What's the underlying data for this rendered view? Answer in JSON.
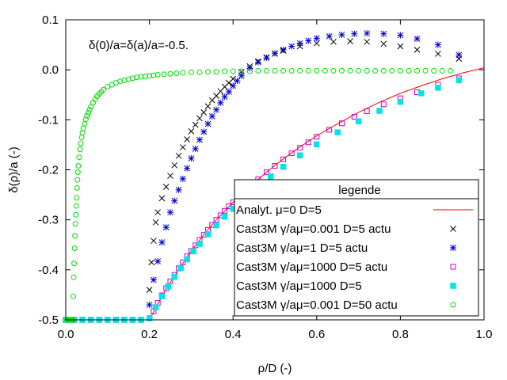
{
  "chart_data": {
    "type": "scatter",
    "xlabel": "ρ/D (-)",
    "ylabel": "δ(ρ)/a (-)",
    "annotation": "δ(0)/a=δ(a)/a=-0.5.",
    "xlim": [
      0.0,
      1.0
    ],
    "ylim": [
      -0.5,
      0.1
    ],
    "xticks": [
      0.0,
      0.2,
      0.4,
      0.6,
      0.8,
      1.0
    ],
    "xtick_labels": [
      "0.0",
      "0.2",
      "0.4",
      "0.6",
      "0.8",
      "1.0"
    ],
    "yticks": [
      -0.5,
      -0.4,
      -0.3,
      -0.2,
      -0.1,
      0.0,
      0.1
    ],
    "ytick_labels": [
      "-0.5",
      "-0.4",
      "-0.3",
      "-0.2",
      "-0.1",
      "0.0",
      "0.1"
    ],
    "legend": {
      "title": "legende",
      "position": "bottom-right"
    },
    "series": [
      {
        "name": "Analyt. μ=0 D=5",
        "marker": "line",
        "color": "#ff0000",
        "x": [
          0.2,
          0.22,
          0.25,
          0.28,
          0.3,
          0.33,
          0.36,
          0.4,
          0.45,
          0.5,
          0.55,
          0.6,
          0.65,
          0.7,
          0.75,
          0.8,
          0.85,
          0.9,
          0.95,
          1.0
        ],
        "y": [
          -0.5,
          -0.468,
          -0.425,
          -0.387,
          -0.362,
          -0.33,
          -0.3,
          -0.265,
          -0.226,
          -0.191,
          -0.16,
          -0.132,
          -0.108,
          -0.085,
          -0.065,
          -0.047,
          -0.032,
          -0.018,
          -0.006,
          0.004
        ]
      },
      {
        "name": "Cast3M γ/aμ=0.001 D=5 actu",
        "marker": "x",
        "color": "#000000",
        "x": [
          0.0,
          0.02,
          0.04,
          0.06,
          0.08,
          0.1,
          0.12,
          0.14,
          0.16,
          0.18,
          0.2,
          0.205,
          0.21,
          0.215,
          0.22,
          0.23,
          0.24,
          0.25,
          0.26,
          0.27,
          0.28,
          0.29,
          0.3,
          0.31,
          0.32,
          0.33,
          0.34,
          0.35,
          0.36,
          0.37,
          0.38,
          0.39,
          0.4,
          0.42,
          0.44,
          0.46,
          0.48,
          0.5,
          0.52,
          0.56,
          0.6,
          0.64,
          0.68,
          0.72,
          0.76,
          0.8,
          0.84,
          0.89,
          0.94
        ],
        "y": [
          -0.5,
          -0.5,
          -0.5,
          -0.5,
          -0.5,
          -0.5,
          -0.5,
          -0.5,
          -0.5,
          -0.5,
          -0.44,
          -0.385,
          -0.342,
          -0.305,
          -0.285,
          -0.257,
          -0.234,
          -0.212,
          -0.191,
          -0.172,
          -0.155,
          -0.139,
          -0.123,
          -0.11,
          -0.097,
          -0.085,
          -0.073,
          -0.061,
          -0.052,
          -0.043,
          -0.034,
          -0.026,
          -0.018,
          -0.004,
          0.007,
          0.017,
          0.025,
          0.032,
          0.038,
          0.047,
          0.053,
          0.056,
          0.057,
          0.056,
          0.052,
          0.047,
          0.04,
          0.032,
          0.022
        ]
      },
      {
        "name": "Cast3M γ/aμ=1 D=5 actu",
        "marker": "star",
        "color": "#0000cc",
        "x": [
          0.0,
          0.02,
          0.04,
          0.06,
          0.08,
          0.1,
          0.12,
          0.14,
          0.16,
          0.18,
          0.2,
          0.21,
          0.22,
          0.23,
          0.24,
          0.25,
          0.26,
          0.27,
          0.28,
          0.29,
          0.3,
          0.31,
          0.32,
          0.33,
          0.34,
          0.35,
          0.36,
          0.37,
          0.38,
          0.39,
          0.4,
          0.41,
          0.42,
          0.44,
          0.46,
          0.48,
          0.5,
          0.52,
          0.54,
          0.56,
          0.58,
          0.6,
          0.63,
          0.66,
          0.69,
          0.72,
          0.76,
          0.8,
          0.84,
          0.89,
          0.94
        ],
        "y": [
          -0.5,
          -0.5,
          -0.5,
          -0.5,
          -0.5,
          -0.5,
          -0.5,
          -0.5,
          -0.5,
          -0.5,
          -0.47,
          -0.42,
          -0.383,
          -0.345,
          -0.315,
          -0.285,
          -0.262,
          -0.24,
          -0.218,
          -0.197,
          -0.177,
          -0.158,
          -0.14,
          -0.124,
          -0.108,
          -0.093,
          -0.08,
          -0.066,
          -0.054,
          -0.044,
          -0.032,
          -0.022,
          -0.012,
          0.003,
          0.015,
          0.024,
          0.033,
          0.04,
          0.047,
          0.053,
          0.058,
          0.063,
          0.067,
          0.07,
          0.072,
          0.073,
          0.072,
          0.069,
          0.062,
          0.05,
          0.03
        ]
      },
      {
        "name": "Cast3M γ/aμ=1000 D=5 actu",
        "marker": "square-open",
        "color": "#cc00cc",
        "x": [
          0.0,
          0.02,
          0.04,
          0.06,
          0.08,
          0.1,
          0.12,
          0.14,
          0.16,
          0.18,
          0.2,
          0.21,
          0.22,
          0.23,
          0.24,
          0.25,
          0.26,
          0.27,
          0.28,
          0.29,
          0.3,
          0.31,
          0.32,
          0.33,
          0.34,
          0.35,
          0.36,
          0.37,
          0.38,
          0.39,
          0.4,
          0.42,
          0.44,
          0.46,
          0.48,
          0.5,
          0.52,
          0.54,
          0.56,
          0.58,
          0.6,
          0.63,
          0.66,
          0.69,
          0.72,
          0.76,
          0.8,
          0.84,
          0.89,
          0.94
        ],
        "y": [
          -0.5,
          -0.5,
          -0.5,
          -0.5,
          -0.5,
          -0.5,
          -0.5,
          -0.5,
          -0.5,
          -0.5,
          -0.497,
          -0.483,
          -0.466,
          -0.451,
          -0.437,
          -0.423,
          -0.41,
          -0.397,
          -0.385,
          -0.373,
          -0.362,
          -0.351,
          -0.34,
          -0.33,
          -0.32,
          -0.31,
          -0.3,
          -0.291,
          -0.282,
          -0.273,
          -0.265,
          -0.249,
          -0.233,
          -0.219,
          -0.205,
          -0.192,
          -0.179,
          -0.167,
          -0.156,
          -0.145,
          -0.134,
          -0.12,
          -0.107,
          -0.094,
          -0.083,
          -0.069,
          -0.057,
          -0.045,
          -0.03,
          -0.017
        ]
      },
      {
        "name": "Cast3M γ/aμ=1000 D=5",
        "marker": "square-filled",
        "color": "#00e5e5",
        "x": [
          0.0,
          0.02,
          0.04,
          0.06,
          0.08,
          0.1,
          0.12,
          0.14,
          0.16,
          0.18,
          0.2,
          0.215,
          0.23,
          0.245,
          0.26,
          0.275,
          0.29,
          0.305,
          0.32,
          0.34,
          0.36,
          0.38,
          0.4,
          0.43,
          0.46,
          0.49,
          0.52,
          0.56,
          0.6,
          0.65,
          0.7,
          0.75,
          0.8,
          0.85,
          0.89,
          0.94
        ],
        "y": [
          -0.5,
          -0.5,
          -0.5,
          -0.5,
          -0.5,
          -0.5,
          -0.5,
          -0.5,
          -0.5,
          -0.5,
          -0.497,
          -0.475,
          -0.453,
          -0.433,
          -0.414,
          -0.396,
          -0.379,
          -0.363,
          -0.348,
          -0.329,
          -0.311,
          -0.294,
          -0.278,
          -0.255,
          -0.234,
          -0.213,
          -0.194,
          -0.171,
          -0.149,
          -0.125,
          -0.103,
          -0.082,
          -0.064,
          -0.047,
          -0.036,
          -0.021
        ]
      },
      {
        "name": "Cast3M γ/aμ=0.001 D=50 actu",
        "marker": "circle-open",
        "color": "#00dd00",
        "x": [
          0.003,
          0.005,
          0.007,
          0.008,
          0.009,
          0.01,
          0.011,
          0.012,
          0.013,
          0.014,
          0.015,
          0.016,
          0.017,
          0.018,
          0.019,
          0.02,
          0.021,
          0.022,
          0.023,
          0.024,
          0.025,
          0.026,
          0.027,
          0.028,
          0.029,
          0.03,
          0.032,
          0.034,
          0.036,
          0.038,
          0.04,
          0.042,
          0.045,
          0.048,
          0.051,
          0.054,
          0.057,
          0.06,
          0.065,
          0.07,
          0.075,
          0.08,
          0.085,
          0.09,
          0.1,
          0.11,
          0.12,
          0.13,
          0.14,
          0.15,
          0.16,
          0.17,
          0.18,
          0.19,
          0.2,
          0.21,
          0.22,
          0.235,
          0.25,
          0.265,
          0.28,
          0.3,
          0.32,
          0.34,
          0.36,
          0.38,
          0.4,
          0.42,
          0.44,
          0.46,
          0.48,
          0.5,
          0.52,
          0.54,
          0.56,
          0.58,
          0.6,
          0.62,
          0.64,
          0.66,
          0.68,
          0.7,
          0.72,
          0.74,
          0.76,
          0.78,
          0.8,
          0.82,
          0.84,
          0.86,
          0.88,
          0.9,
          0.92
        ],
        "y": [
          -0.5,
          -0.5,
          -0.5,
          -0.5,
          -0.5,
          -0.5,
          -0.5,
          -0.5,
          -0.5,
          -0.5,
          -0.5,
          -0.5,
          -0.5,
          -0.453,
          -0.415,
          -0.387,
          -0.357,
          -0.332,
          -0.308,
          -0.29,
          -0.272,
          -0.256,
          -0.236,
          -0.22,
          -0.205,
          -0.192,
          -0.175,
          -0.159,
          -0.147,
          -0.135,
          -0.126,
          -0.117,
          -0.108,
          -0.099,
          -0.092,
          -0.086,
          -0.08,
          -0.074,
          -0.066,
          -0.059,
          -0.053,
          -0.048,
          -0.044,
          -0.04,
          -0.034,
          -0.03,
          -0.026,
          -0.023,
          -0.021,
          -0.019,
          -0.017,
          -0.015,
          -0.014,
          -0.013,
          -0.012,
          -0.011,
          -0.01,
          -0.009,
          -0.008,
          -0.007,
          -0.006,
          -0.005,
          -0.005,
          -0.004,
          -0.004,
          -0.003,
          -0.003,
          -0.003,
          -0.003,
          -0.002,
          -0.002,
          -0.002,
          -0.002,
          -0.002,
          -0.002,
          -0.002,
          -0.002,
          -0.002,
          -0.002,
          -0.002,
          -0.002,
          -0.002,
          -0.002,
          -0.002,
          -0.002,
          -0.002,
          -0.002,
          -0.002,
          -0.002,
          -0.002,
          -0.002,
          -0.002,
          -0.002
        ]
      }
    ]
  }
}
